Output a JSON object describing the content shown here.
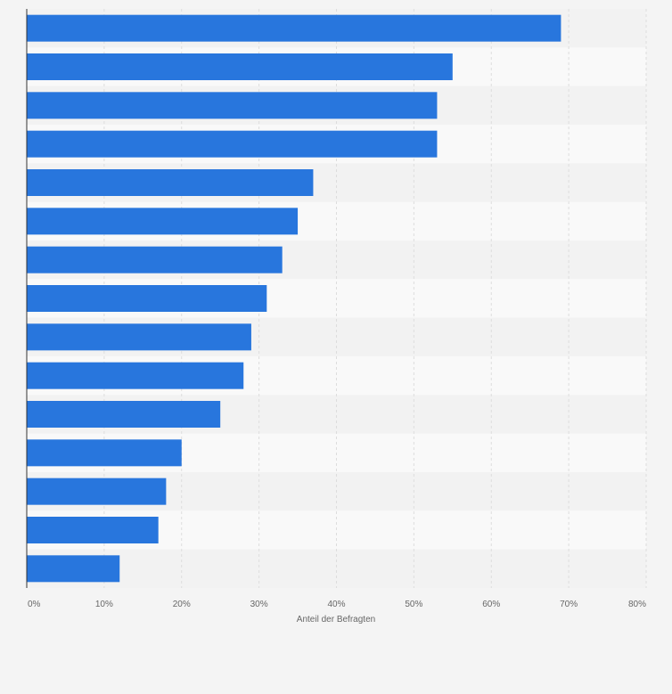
{
  "chart_data": {
    "type": "bar",
    "orientation": "horizontal",
    "categories": [
      "",
      "",
      "",
      "",
      "",
      "",
      "",
      "",
      "",
      "",
      "",
      "",
      "",
      "",
      ""
    ],
    "values": [
      69,
      55,
      53,
      53,
      37,
      35,
      33,
      31,
      29,
      28,
      25,
      20,
      18,
      17,
      12
    ],
    "xlabel": "Anteil der Befragten",
    "x_ticks": [
      "0%",
      "10%",
      "20%",
      "30%",
      "40%",
      "50%",
      "60%",
      "70%",
      "80%"
    ],
    "xlim": [
      0,
      80
    ],
    "grid": true,
    "colors": {
      "bar": "#2876dd",
      "band_light": "#f9f9f9",
      "band_dark": "#f2f2f2",
      "background": "#f4f4f4",
      "gridline": "#dddddd",
      "axis": "#333333",
      "text": "#666666"
    }
  }
}
